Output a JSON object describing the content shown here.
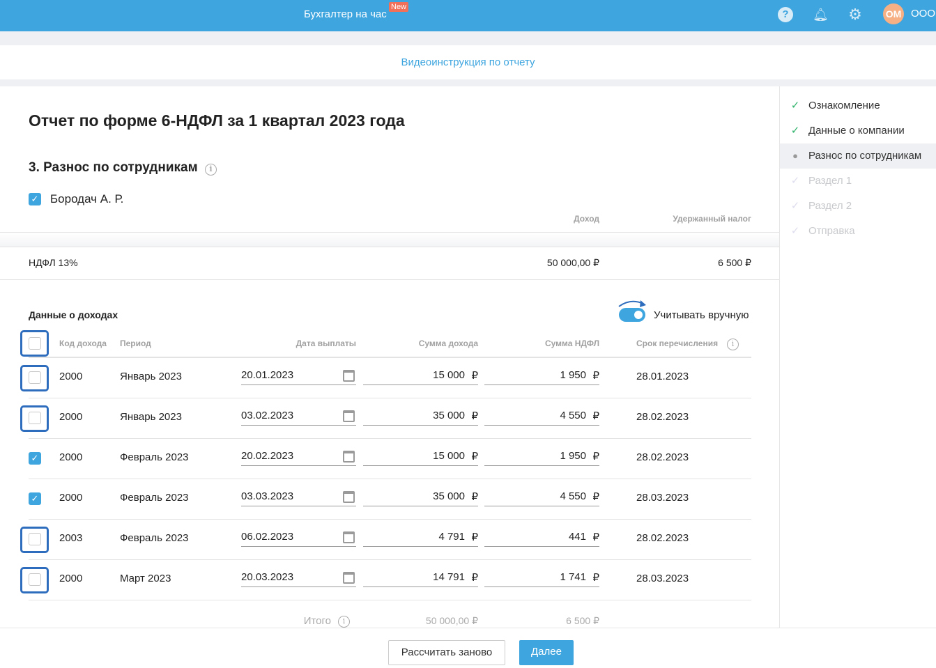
{
  "header": {
    "brand": "Бухгалтер на час",
    "badge": "New",
    "avatar": "ОМ",
    "org": "ООО",
    "icons": [
      "help-icon",
      "bell-icon",
      "gear-icon"
    ]
  },
  "video_link": "Видеоинструкция по отчету",
  "title": "Отчет по форме 6-НДФЛ за 1 квартал 2023 года",
  "section": "3. Разнос по сотрудникам",
  "employee": {
    "name": "Бородач А. Р.",
    "checked": true
  },
  "summary": {
    "col_income": "Доход",
    "col_tax": "Удержанный налог",
    "rate_label": "НДФЛ 13%",
    "income": "50 000,00 ₽",
    "tax": "6 500 ₽"
  },
  "income": {
    "title": "Данные о доходах",
    "toggle_label": "Учитывать вручную",
    "toggle_on": true,
    "columns": [
      "Код дохода",
      "Период",
      "Дата выплаты",
      "Сумма дохода",
      "Сумма НДФЛ",
      "Срок перечисления"
    ],
    "currency": "₽",
    "rows": [
      {
        "checked": false,
        "code": "2000",
        "period": "Январь 2023",
        "date": "20.01.2023",
        "sum": "15 000",
        "ndfl": "1 950",
        "deadline": "28.01.2023"
      },
      {
        "checked": false,
        "code": "2000",
        "period": "Январь 2023",
        "date": "03.02.2023",
        "sum": "35 000",
        "ndfl": "4 550",
        "deadline": "28.02.2023"
      },
      {
        "checked": true,
        "code": "2000",
        "period": "Февраль 2023",
        "date": "20.02.2023",
        "sum": "15 000",
        "ndfl": "1 950",
        "deadline": "28.02.2023"
      },
      {
        "checked": true,
        "code": "2000",
        "period": "Февраль 2023",
        "date": "03.03.2023",
        "sum": "35 000",
        "ndfl": "4 550",
        "deadline": "28.03.2023"
      },
      {
        "checked": false,
        "code": "2003",
        "period": "Февраль 2023",
        "date": "06.02.2023",
        "sum": "4 791",
        "ndfl": "441",
        "deadline": "28.02.2023"
      },
      {
        "checked": false,
        "code": "2000",
        "period": "Март 2023",
        "date": "20.03.2023",
        "sum": "14 791",
        "ndfl": "1 741",
        "deadline": "28.03.2023"
      }
    ],
    "total_label": "Итого",
    "total_sum": "50 000,00 ₽",
    "total_ndfl": "6 500 ₽"
  },
  "steps": [
    {
      "label": "Ознакомление",
      "state": "done"
    },
    {
      "label": "Данные о компании",
      "state": "done"
    },
    {
      "label": "Разнос по сотрудникам",
      "state": "active"
    },
    {
      "label": "Раздел 1",
      "state": "disabled"
    },
    {
      "label": "Раздел 2",
      "state": "disabled"
    },
    {
      "label": "Отправка",
      "state": "disabled"
    }
  ],
  "buttons": {
    "recalc": "Рассчитать заново",
    "next": "Далее"
  },
  "colors": {
    "primary": "#3ea5df",
    "badge": "#f0705a",
    "done": "#2fb36b"
  }
}
